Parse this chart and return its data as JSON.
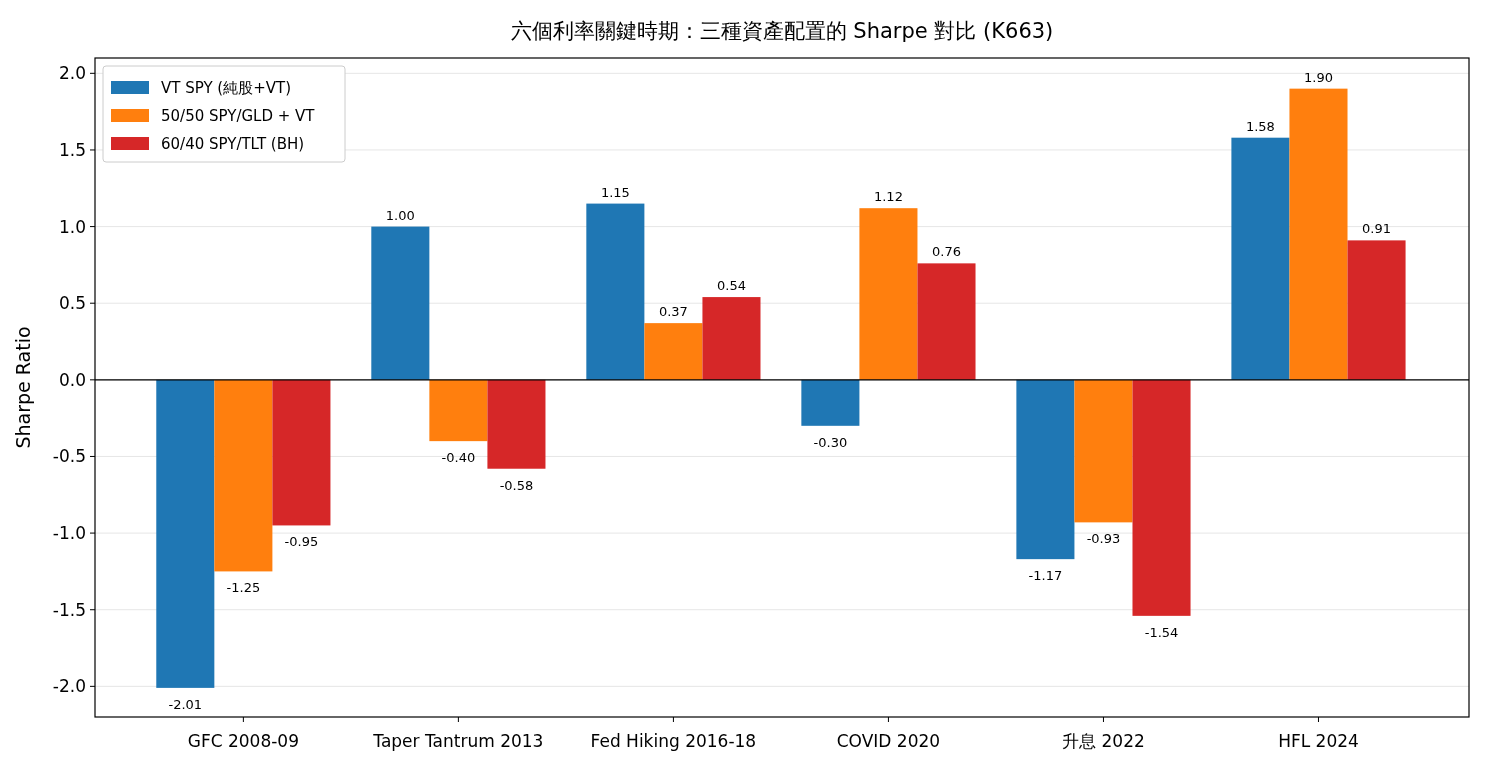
{
  "chart_data": {
    "type": "bar",
    "title": "六個利率關鍵時期：三種資產配置的 Sharpe 對比 (K663)",
    "ylabel": "Sharpe Ratio",
    "categories": [
      "GFC 2008-09",
      "Taper Tantrum 2013",
      "Fed Hiking 2016-18",
      "COVID 2020",
      "升息 2022",
      "HFL 2024"
    ],
    "series": [
      {
        "name": "VT SPY (純股+VT)",
        "color": "#1f77b4",
        "values": [
          -2.01,
          1.0,
          1.15,
          -0.3,
          -1.17,
          1.58
        ],
        "value_labels": [
          "-2.01",
          "1.00",
          "1.15",
          "-0.30",
          "-1.17",
          "1.58"
        ]
      },
      {
        "name": "50/50 SPY/GLD + VT",
        "color": "#ff7f0e",
        "values": [
          -1.25,
          -0.4,
          0.37,
          1.12,
          -0.93,
          1.9
        ],
        "value_labels": [
          "-1.25",
          "-0.40",
          "0.37",
          "1.12",
          "-0.93",
          "1.90"
        ]
      },
      {
        "name": "60/40 SPY/TLT (BH)",
        "color": "#d62728",
        "values": [
          -0.95,
          -0.58,
          0.54,
          0.76,
          -1.54,
          0.91
        ],
        "value_labels": [
          "-0.95",
          "-0.58",
          "0.54",
          "0.76",
          "-1.54",
          "0.91"
        ]
      }
    ],
    "ylim": [
      -2.2,
      2.1
    ],
    "yticks": [
      {
        "value": -2,
        "label": "-2.0"
      },
      {
        "value": -1.5,
        "label": "-1.5"
      },
      {
        "value": -1,
        "label": "-1.0"
      },
      {
        "value": -0.5,
        "label": "-0.5"
      },
      {
        "value": 0,
        "label": "0.0"
      },
      {
        "value": 0.5,
        "label": "0.5"
      },
      {
        "value": 1,
        "label": "1.0"
      },
      {
        "value": 1.5,
        "label": "1.5"
      },
      {
        "value": 2,
        "label": "2.0"
      }
    ],
    "ref_lines": [
      {
        "axis": "y",
        "value": 0,
        "color": "#000000"
      }
    ],
    "grid": "y",
    "legend": "top left"
  }
}
